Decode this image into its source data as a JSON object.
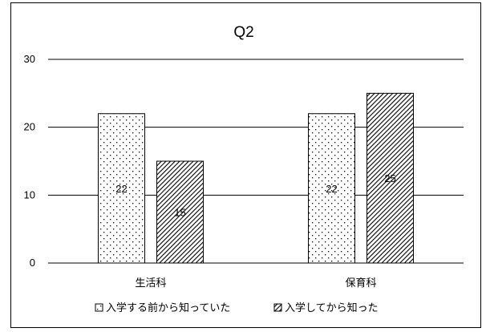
{
  "chart_data": {
    "type": "bar",
    "title": "Q2",
    "categories": [
      "生活科",
      "保育科"
    ],
    "series": [
      {
        "name": "入学する前から知っていた",
        "values": [
          22,
          22
        ],
        "pattern": "dots"
      },
      {
        "name": "入学してから知った",
        "values": [
          15,
          25
        ],
        "pattern": "diagonal-hatch"
      }
    ],
    "ylim": [
      0,
      30
    ],
    "yticks": [
      0,
      10,
      20,
      30
    ],
    "grid": true,
    "legend_position": "bottom",
    "xlabel": "",
    "ylabel": "",
    "colors": {
      "bar_border": "#000000",
      "pattern_ink": "#000000",
      "background": "#ffffff",
      "grid": "#000000"
    }
  }
}
